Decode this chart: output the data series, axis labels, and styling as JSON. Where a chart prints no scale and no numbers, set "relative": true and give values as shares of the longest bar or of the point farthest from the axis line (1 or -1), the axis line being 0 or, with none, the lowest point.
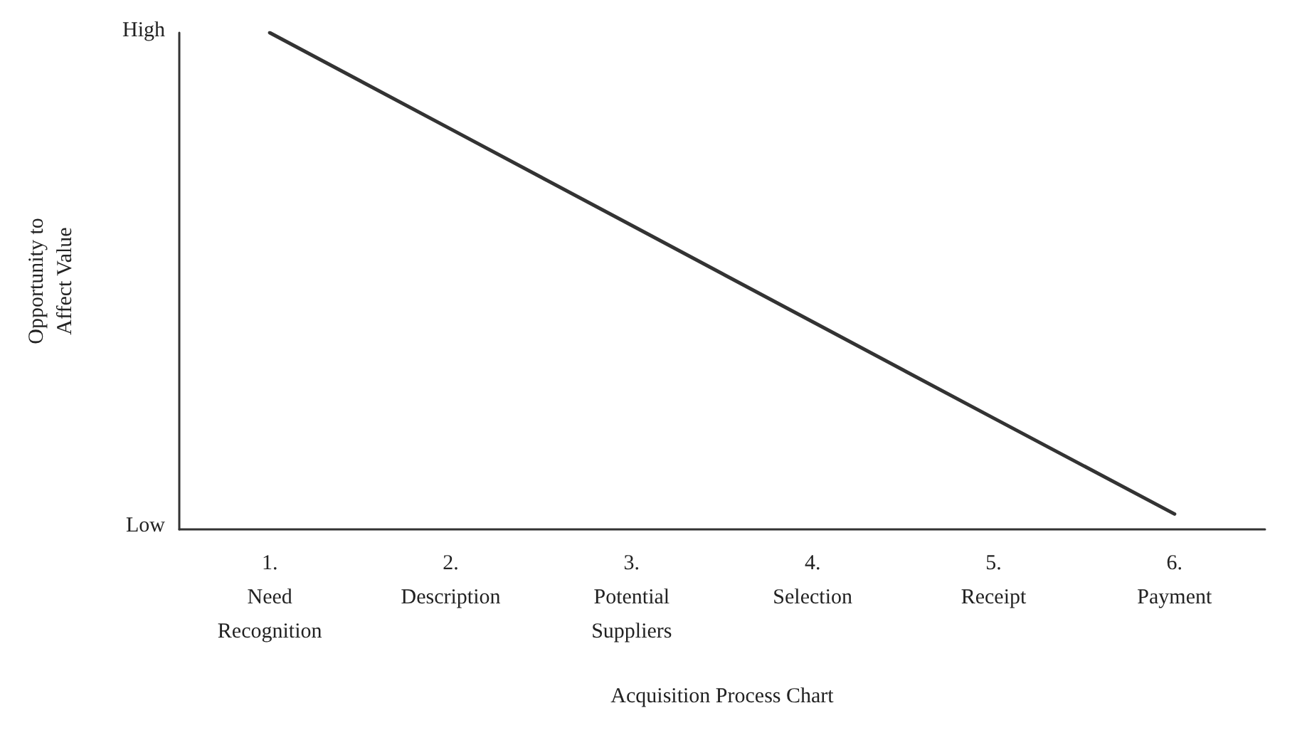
{
  "chart_data": {
    "type": "line",
    "xlabel": "Acquisition Process Chart",
    "ylabel": "Opportunity to\nAffect Value",
    "categories": [
      "1.\nNeed\nRecognition",
      "2.\nDescription",
      "3.\nPotential\nSuppliers",
      "4.\nSelection",
      "5.\nReceipt",
      "6.\nPayment"
    ],
    "series": [
      {
        "color": "#333333",
        "values": [
          1,
          0.806,
          0.612,
          0.418,
          0.224,
          0.031
        ]
      }
    ],
    "relative": true,
    "annotations": [
      "High",
      "Low"
    ],
    "grid": false,
    "marker": "none",
    "line_style": "solid"
  }
}
